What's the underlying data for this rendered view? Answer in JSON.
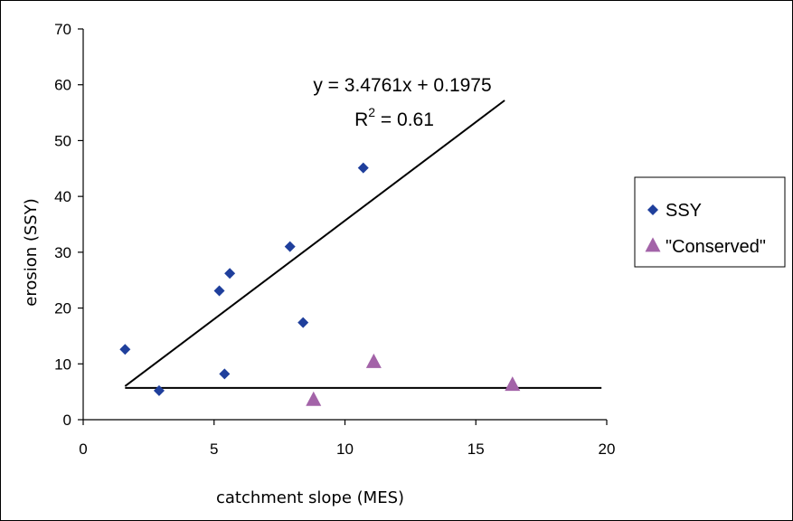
{
  "chart_data": {
    "type": "scatter",
    "title": "",
    "xlabel": "catchment slope (MES)",
    "ylabel": "erosion (SSY)",
    "xlim": [
      0,
      20
    ],
    "ylim": [
      0,
      70
    ],
    "x_ticks": [
      0,
      5,
      10,
      15,
      20
    ],
    "y_ticks": [
      0,
      10,
      20,
      30,
      40,
      50,
      60,
      70
    ],
    "grid": false,
    "legend_position": "right",
    "series": [
      {
        "name": "SSY",
        "marker": "diamond",
        "color": "#1f3f9c",
        "points": [
          {
            "x": 1.6,
            "y": 12.6
          },
          {
            "x": 2.9,
            "y": 5.2
          },
          {
            "x": 5.2,
            "y": 23.1
          },
          {
            "x": 5.4,
            "y": 8.2
          },
          {
            "x": 5.6,
            "y": 26.2
          },
          {
            "x": 7.9,
            "y": 31.0
          },
          {
            "x": 8.4,
            "y": 17.4
          },
          {
            "x": 10.7,
            "y": 45.1
          }
        ]
      },
      {
        "name": "\"Conserved\"",
        "marker": "triangle",
        "color": "#a363a8",
        "points": [
          {
            "x": 8.8,
            "y": 3.5
          },
          {
            "x": 11.1,
            "y": 10.3
          },
          {
            "x": 16.4,
            "y": 6.2
          }
        ]
      }
    ],
    "trendlines": [
      {
        "series": "SSY",
        "from": [
          1.6,
          6.0
        ],
        "to": [
          16.1,
          57.2
        ],
        "color": "#000000"
      },
      {
        "series": "\"Conserved\"",
        "from": [
          1.6,
          5.7
        ],
        "to": [
          19.8,
          5.7
        ],
        "color": "#000000"
      }
    ],
    "annotations": {
      "equation": "y = 3.4761x + 0.1975",
      "r2_prefix": "R",
      "r2_superscript": "2",
      "r2_suffix": " = 0.61"
    }
  }
}
